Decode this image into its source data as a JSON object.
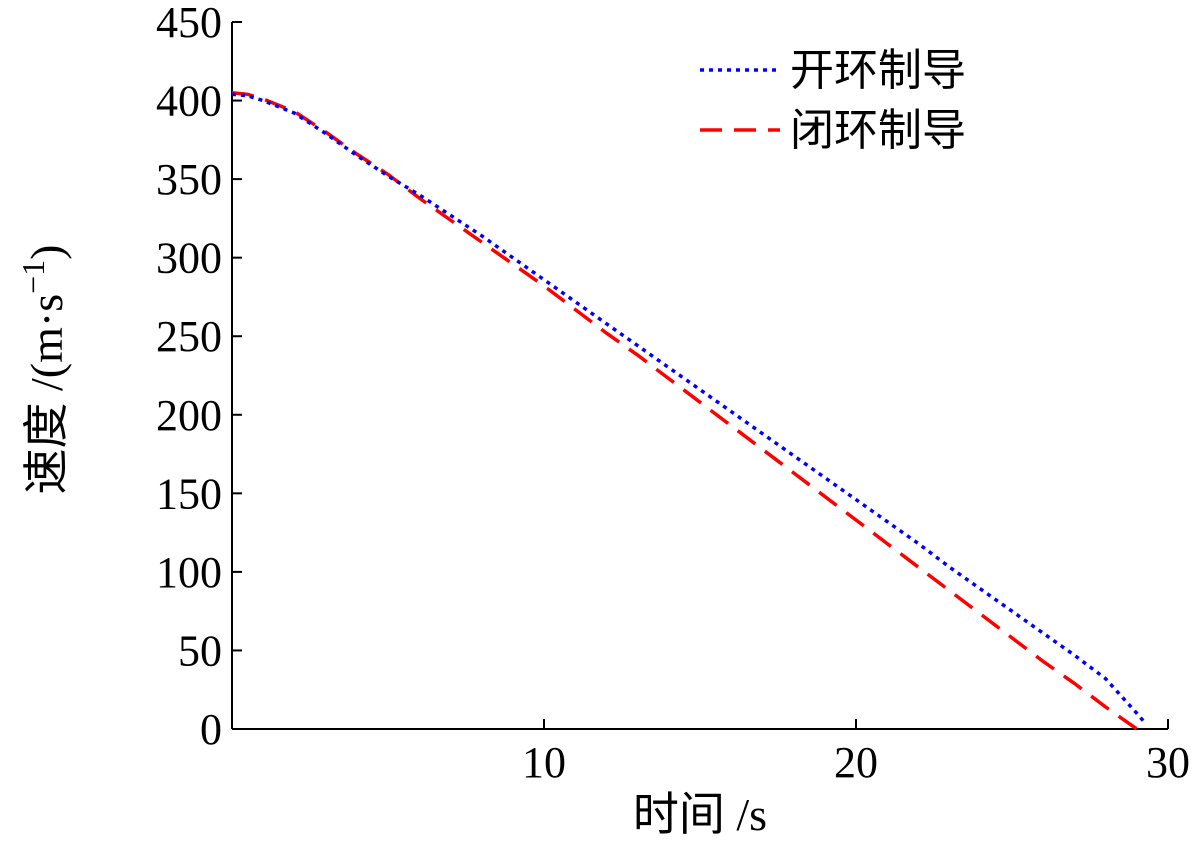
{
  "chart_data": {
    "type": "line",
    "xlabel": "时间 /s",
    "ylabel": "速度 /(m·s",
    "ylabel_sup": "−1",
    "ylabel_close": ")",
    "xlim": [
      0,
      30
    ],
    "ylim": [
      0,
      450
    ],
    "xticks": [
      10,
      20,
      30
    ],
    "yticks": [
      0,
      50,
      100,
      150,
      200,
      250,
      300,
      350,
      400,
      450
    ],
    "grid": false,
    "legend_position": "top-right",
    "series": [
      {
        "name": "开环制导",
        "color": "#0000ff",
        "dash": "dotted",
        "x": [
          0,
          0.5,
          1,
          2,
          3,
          4,
          5,
          6,
          7,
          8,
          9,
          10,
          11,
          12,
          13,
          14,
          15,
          16,
          17,
          18,
          19,
          20,
          21,
          22,
          23,
          24,
          25,
          26,
          27,
          28,
          29,
          29.3
        ],
        "y": [
          404,
          403,
          400,
          392,
          379,
          365,
          352,
          340,
          327,
          314,
          300,
          286,
          272,
          258,
          244,
          230,
          216,
          202,
          188,
          174,
          160,
          146,
          132,
          118,
          103,
          89,
          75,
          61,
          47,
          32,
          10,
          3
        ]
      },
      {
        "name": "闭环制导",
        "color": "#ff0000",
        "dash": "dashed",
        "x": [
          0,
          0.5,
          1,
          2,
          3,
          4,
          5,
          6,
          7,
          8,
          9,
          10,
          11,
          12,
          13,
          14,
          15,
          16,
          17,
          18,
          19,
          20,
          21,
          22,
          23,
          24,
          25,
          26,
          27,
          28,
          29
        ],
        "y": [
          405,
          404,
          401,
          393,
          380,
          366,
          353,
          338,
          324,
          310,
          296,
          282,
          267,
          252,
          238,
          223,
          208,
          193,
          178,
          163,
          148,
          133,
          118,
          103,
          88,
          73,
          58,
          43,
          29,
          14,
          0
        ]
      }
    ]
  }
}
